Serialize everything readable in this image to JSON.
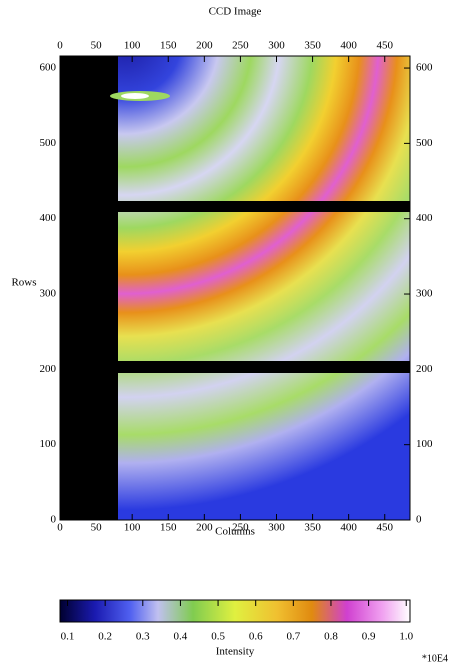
{
  "chart_data": {
    "type": "heatmap",
    "title": "CCD Image",
    "x_label": "Columns",
    "y_label": "Rows",
    "xlim": [
      0,
      485
    ],
    "xticks": [
      0,
      50,
      100,
      150,
      200,
      250,
      300,
      350,
      400,
      450
    ],
    "ylim": [
      0,
      616
    ],
    "yticks": [
      0,
      100,
      200,
      300,
      400,
      500,
      600
    ],
    "colorbar": {
      "label": "Intensity",
      "scale_label": "*10E4",
      "lim": [
        0.08,
        1.01
      ],
      "ticks": [
        0.1,
        0.2,
        0.3,
        0.4,
        0.5,
        0.6,
        0.7,
        0.8,
        0.9,
        {
          "value": 1,
          "label": "1.0"
        }
      ]
    }
  }
}
